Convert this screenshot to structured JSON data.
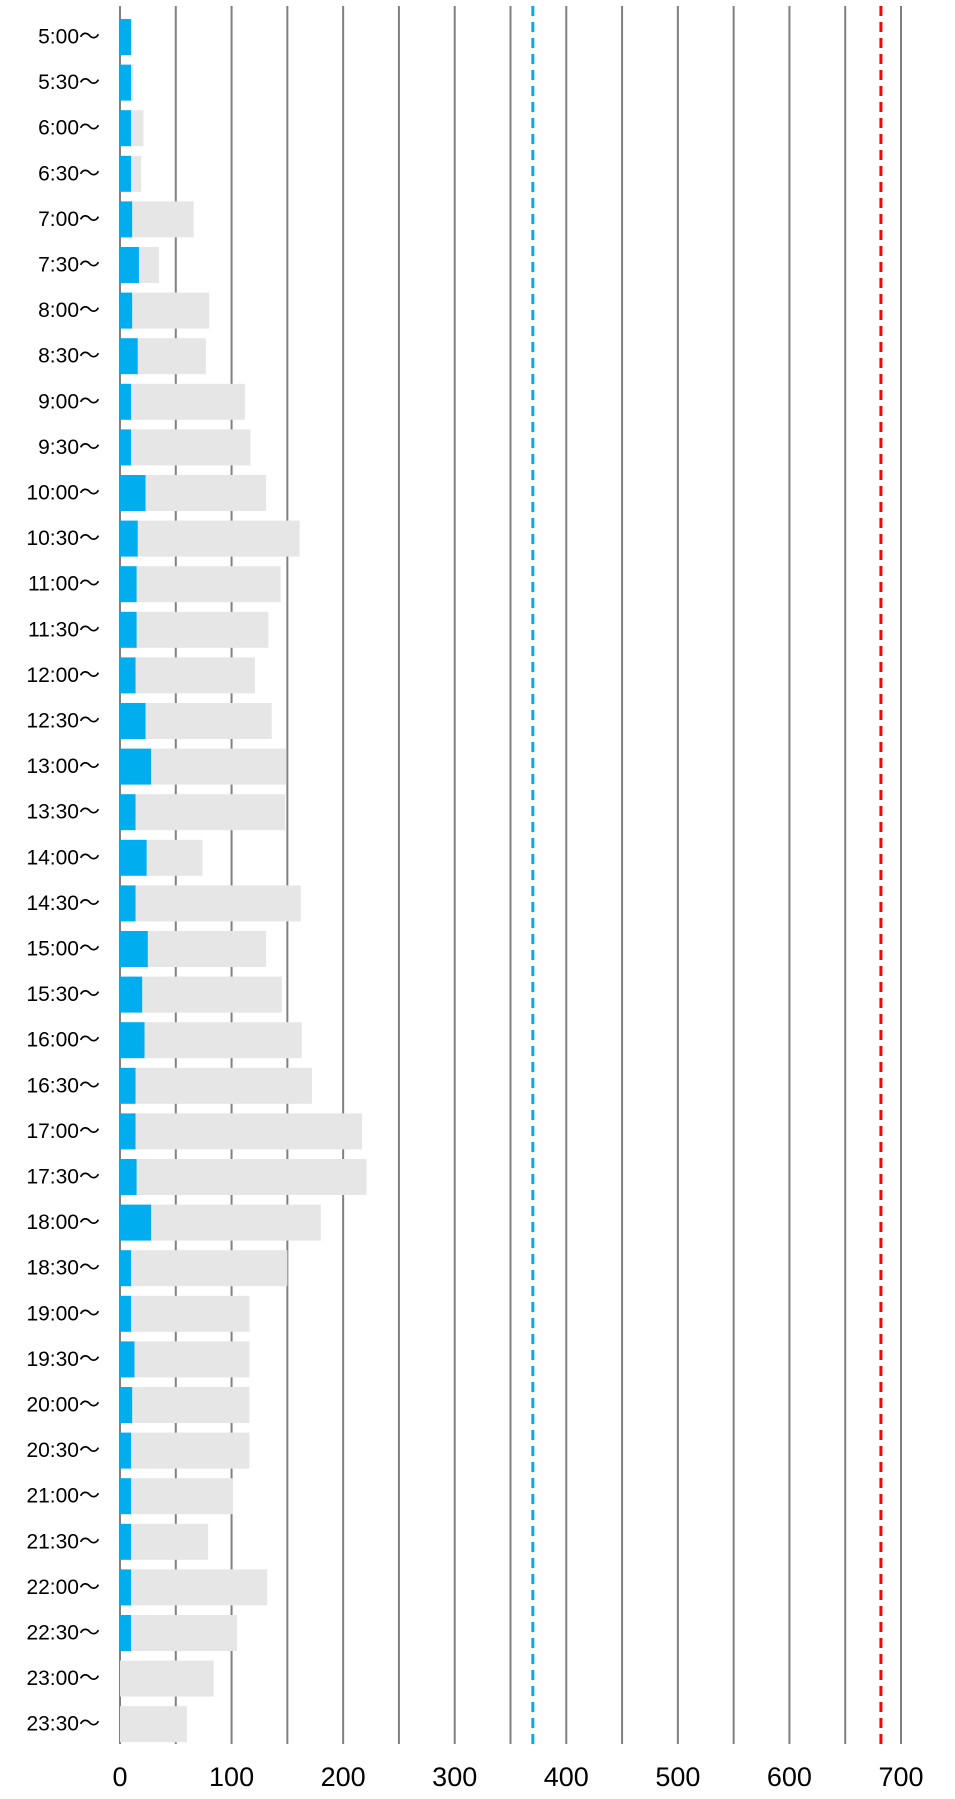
{
  "chart_data": {
    "type": "bar",
    "orientation": "horizontal",
    "stacked": true,
    "categories": [
      "5:00〜",
      "5:30〜",
      "6:00〜",
      "6:30〜",
      "7:00〜",
      "7:30〜",
      "8:00〜",
      "8:30〜",
      "9:00〜",
      "9:30〜",
      "10:00〜",
      "10:30〜",
      "11:00〜",
      "11:30〜",
      "12:00〜",
      "12:30〜",
      "13:00〜",
      "13:30〜",
      "14:00〜",
      "14:30〜",
      "15:00〜",
      "15:30〜",
      "16:00〜",
      "16:30〜",
      "17:00〜",
      "17:30〜",
      "18:00〜",
      "18:30〜",
      "19:00〜",
      "19:30〜",
      "20:00〜",
      "20:30〜",
      "21:00〜",
      "21:30〜",
      "22:00〜",
      "22:30〜",
      "23:00〜",
      "23:30〜"
    ],
    "series": [
      {
        "values": [
          10,
          10,
          10,
          10,
          11,
          17,
          11,
          16,
          10,
          10,
          23,
          16,
          15,
          15,
          14,
          23,
          28,
          14,
          24,
          14,
          25,
          20,
          22,
          14,
          14,
          15,
          28,
          10,
          10,
          13,
          11,
          10,
          10,
          10,
          10,
          10,
          0,
          0
        ],
        "color": "#00AEEF"
      },
      {
        "values": [
          0,
          2,
          11,
          9,
          55,
          18,
          69,
          61,
          102,
          107,
          108,
          145,
          129,
          118,
          107,
          113,
          121,
          134,
          50,
          148,
          106,
          125,
          141,
          158,
          203,
          206,
          152,
          140,
          106,
          103,
          105,
          106,
          91,
          69,
          122,
          95,
          84,
          60
        ],
        "color": "#E6E6E6"
      }
    ],
    "xlim": [
      0,
      700
    ],
    "xticks": [
      0,
      100,
      200,
      300,
      400,
      500,
      600,
      700
    ],
    "gridlines": [
      0,
      50,
      100,
      150,
      200,
      250,
      300,
      350,
      400,
      450,
      500,
      550,
      600,
      650,
      700
    ],
    "gridline_color": "#808080",
    "reference_lines": [
      {
        "value": 370,
        "color": "#00AEEF",
        "style": "dashed"
      },
      {
        "value": 682,
        "color": "#FF0000",
        "style": "dashed"
      }
    ],
    "grid": true,
    "legend": "none"
  }
}
